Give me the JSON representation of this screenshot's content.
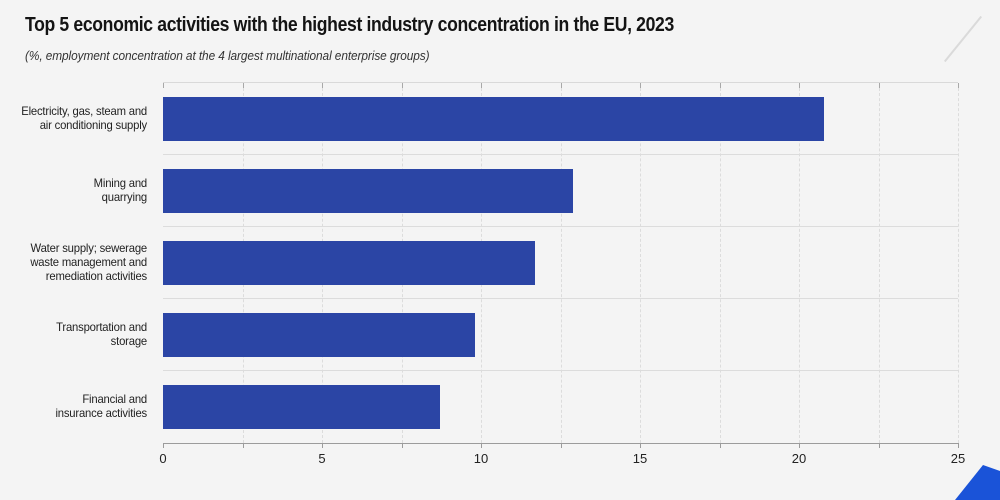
{
  "chart_data": {
    "type": "bar",
    "orientation": "horizontal",
    "title": "Top 5 economic activities with the highest industry concentration in the EU, 2023",
    "subtitle": "(%, employment concentration at the 4 largest multinational enterprise groups)",
    "categories": [
      "Electricity, gas, steam and\nair conditioning supply",
      "Mining and\nquarrying",
      "Water supply; sewerage\nwaste management and\nremediation activities",
      "Transportation and\nstorage",
      "Financial and\ninsurance activities"
    ],
    "values": [
      20.8,
      12.9,
      11.7,
      9.8,
      8.7
    ],
    "xlabel": "",
    "ylabel": "",
    "xlim": [
      0,
      25
    ],
    "x_major_ticks": [
      0,
      5,
      10,
      15,
      20,
      25
    ],
    "x_minor_step": 2.5,
    "grid": "vertical dashed gridlines every 2.5, horizontal solid row separators",
    "legend": "none",
    "colors": {
      "background": "#f4f4f4",
      "bar": "#2b45a5",
      "logo_stripe": "#1a53d8",
      "gridline": "#dcdcdc",
      "axis_line": "#9b9b9b",
      "title_text": "#141414",
      "label_text": "#222222"
    }
  }
}
